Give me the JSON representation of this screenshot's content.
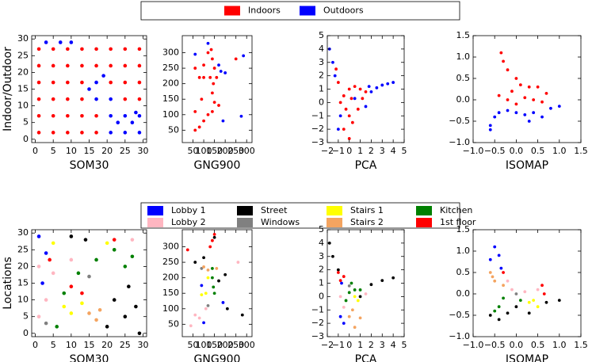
{
  "chart_data": [
    {
      "type": "scatter",
      "xlabel": "SOM30",
      "ylabel": "Indoor/Outdoor",
      "xlim": [
        -1,
        31
      ],
      "ylim": [
        -1,
        31
      ],
      "xticks": [
        0,
        5,
        10,
        15,
        20,
        25,
        30
      ],
      "yticks": [
        0,
        5,
        10,
        15,
        20,
        25,
        30
      ],
      "series": [
        {
          "name": "Indoors",
          "color": "#ff0000",
          "x": [
            1,
            5,
            9,
            13,
            17,
            1,
            5,
            9,
            13,
            17,
            1,
            5,
            9,
            13,
            25,
            29,
            1,
            5,
            9,
            13,
            21,
            25,
            29,
            1,
            5,
            9,
            13,
            17,
            21,
            25,
            29,
            1,
            5,
            9,
            13,
            17,
            21,
            25,
            29
          ],
          "values": [
            2,
            2,
            2,
            2,
            2,
            7,
            7,
            7,
            7,
            7,
            12,
            12,
            12,
            12,
            12,
            12,
            17,
            17,
            17,
            17,
            17,
            17,
            17,
            22,
            22,
            22,
            22,
            22,
            22,
            22,
            22,
            27,
            27,
            27,
            27,
            27,
            27,
            27,
            27
          ]
        },
        {
          "name": "Outdoors",
          "color": "#0000ff",
          "x": [
            21,
            25,
            29,
            23,
            27,
            21,
            25,
            29,
            17,
            21,
            15,
            17,
            19,
            3,
            7,
            10,
            28
          ],
          "values": [
            2,
            2,
            2,
            5,
            5,
            7,
            7,
            7,
            12,
            12,
            15,
            17,
            19,
            29,
            29,
            29,
            8
          ]
        }
      ]
    },
    {
      "type": "scatter",
      "xlabel": "GNG900",
      "xlim": [
        0,
        325
      ],
      "ylim": [
        10,
        355
      ],
      "xticks": [
        50,
        100,
        150,
        200,
        250,
        300
      ],
      "yticks": [
        50,
        100,
        150,
        200,
        250,
        300
      ],
      "series": [
        {
          "color": "#ff0000",
          "x": [
            60,
            80,
            100,
            120,
            140,
            150,
            140,
            145,
            130,
            100,
            80,
            160,
            150,
            140,
            135,
            120,
            100,
            60,
            90,
            170,
            250,
            60
          ],
          "values": [
            50,
            60,
            80,
            100,
            110,
            140,
            170,
            200,
            220,
            220,
            220,
            220,
            250,
            280,
            310,
            300,
            260,
            250,
            150,
            130,
            280,
            110
          ]
        },
        {
          "color": "#0000ff",
          "x": [
            120,
            180,
            200,
            170,
            275,
            190,
            60,
            285
          ],
          "values": [
            330,
            240,
            235,
            260,
            95,
            80,
            295,
            290
          ]
        }
      ]
    },
    {
      "type": "scatter",
      "xlabel": "PCA",
      "xlim": [
        -2,
        5
      ],
      "ylim": [
        -3,
        5
      ],
      "xticks": [
        {
          "value": -2,
          "label": "−2"
        },
        {
          "value": -1,
          "label": "−1"
        },
        0,
        1,
        2,
        3,
        4,
        5
      ],
      "yticks": [
        {
          "value": -3,
          "label": "−3"
        },
        {
          "value": -2,
          "label": "−2"
        },
        {
          "value": -1,
          "label": "−1"
        },
        0,
        1,
        2,
        3,
        4,
        5
      ],
      "series": [
        {
          "color": "#0000ff",
          "x": [
            -1.8,
            -1.5,
            -1.3,
            -1,
            -0.8,
            2,
            2.5,
            3,
            3.5,
            4,
            1.5,
            0.5,
            1.8
          ],
          "values": [
            4,
            3,
            2,
            -2,
            -1,
            0.8,
            1.1,
            1.3,
            1.4,
            1.5,
            -0.3,
            0.3,
            1.2
          ]
        },
        {
          "color": "#ff0000",
          "x": [
            -0.8,
            -0.5,
            0,
            0.5,
            1,
            1.5,
            0,
            -0.5,
            0.3,
            0.8,
            -1,
            -1.2,
            0.2,
            1.2,
            -0.3,
            0
          ],
          "values": [
            0,
            0.5,
            1,
            1.2,
            1,
            0.8,
            -1,
            -2,
            -1.5,
            -0.5,
            1.5,
            2.5,
            0.3,
            0.3,
            -0.5,
            -2.7
          ]
        }
      ]
    },
    {
      "type": "scatter",
      "xlabel": "ISOMAP",
      "xlim": [
        -1,
        1.5
      ],
      "ylim": [
        -1,
        1.5
      ],
      "xticks": [
        {
          "value": -1,
          "label": "−1.0"
        },
        {
          "value": -0.5,
          "label": "−0.5"
        },
        {
          "value": 0,
          "label": "0.0"
        },
        0.5,
        {
          "value": 1,
          "label": "1.0"
        },
        1.5
      ],
      "yticks": [
        {
          "value": -1,
          "label": "−1.0"
        },
        {
          "value": -0.5,
          "label": "−0.5"
        },
        {
          "value": 0,
          "label": "0.0"
        },
        0.5,
        {
          "value": 1,
          "label": "1.0"
        },
        1.5
      ],
      "series": [
        {
          "color": "#0000ff",
          "x": [
            -0.6,
            -0.5,
            -0.4,
            -0.2,
            0,
            0.2,
            0.4,
            0.6,
            0.8,
            1.0,
            -0.6,
            0.3
          ],
          "values": [
            -0.6,
            -0.4,
            -0.3,
            -0.25,
            -0.3,
            -0.35,
            -0.3,
            -0.4,
            -0.2,
            -0.15,
            -0.7,
            -0.5
          ]
        },
        {
          "color": "#ff0000",
          "x": [
            -0.35,
            -0.3,
            -0.2,
            0,
            0.1,
            0.3,
            0.5,
            0.7,
            -0.4,
            -0.2,
            0,
            0.2,
            0.4,
            0.6,
            -0.1
          ],
          "values": [
            1.1,
            0.9,
            0.7,
            0.5,
            0.35,
            0.3,
            0.3,
            0.15,
            0.1,
            0,
            -0.1,
            0.05,
            0,
            -0.05,
            0.2
          ]
        }
      ]
    },
    {
      "type": "scatter",
      "xlabel": "SOM30",
      "ylabel": "Locations",
      "xlim": [
        -1,
        31
      ],
      "ylim": [
        -1,
        31
      ],
      "xticks": [
        0,
        5,
        10,
        15,
        20,
        25,
        30
      ],
      "yticks": [
        0,
        5,
        10,
        15,
        20,
        25,
        30
      ],
      "series": [
        {
          "name": "Lobby 1",
          "color": "#0000ff",
          "x": [
            1,
            3,
            2
          ],
          "values": [
            29,
            24,
            15
          ]
        },
        {
          "name": "Street",
          "color": "#000000",
          "x": [
            20,
            25,
            28,
            22,
            26,
            10,
            14,
            29
          ],
          "values": [
            2,
            5,
            8,
            10,
            14,
            29,
            28,
            0
          ]
        },
        {
          "name": "Stairs 1",
          "color": "#ffff00",
          "x": [
            8,
            10,
            13,
            5,
            20
          ],
          "values": [
            8,
            6,
            9,
            27,
            27
          ]
        },
        {
          "name": "Kitchen",
          "color": "#008000",
          "x": [
            17,
            22,
            25,
            27,
            12,
            6,
            8
          ],
          "values": [
            22,
            25,
            20,
            23,
            18,
            2,
            12
          ]
        },
        {
          "name": "Lobby 2",
          "color": "#ffb6c1",
          "x": [
            1,
            3,
            1,
            5,
            10,
            27
          ],
          "values": [
            5,
            10,
            20,
            18,
            22,
            28
          ]
        },
        {
          "name": "Windows",
          "color": "#808080",
          "x": [
            15,
            3
          ],
          "values": [
            17,
            3
          ]
        },
        {
          "name": "Stairs 2",
          "color": "#f4a460",
          "x": [
            15,
            17,
            18
          ],
          "values": [
            6,
            4,
            7
          ]
        },
        {
          "name": "1st floor",
          "color": "#ff0000",
          "x": [
            10,
            13,
            22,
            4
          ],
          "values": [
            14,
            12,
            28,
            22
          ]
        }
      ]
    },
    {
      "type": "scatter",
      "xlabel": "GNG900",
      "xlim": [
        0,
        325
      ],
      "ylim": [
        10,
        355
      ],
      "xticks": [
        50,
        100,
        150,
        200,
        250,
        300
      ],
      "yticks": [
        50,
        100,
        150,
        200,
        250,
        300
      ],
      "series": [
        {
          "color": "#0000ff",
          "x": [
            190,
            100,
            90
          ],
          "values": [
            120,
            55,
            175
          ]
        },
        {
          "color": "#000000",
          "x": [
            150,
            170,
            200,
            210,
            280,
            60,
            100
          ],
          "values": [
            330,
            190,
            210,
            100,
            80,
            250,
            265
          ]
        },
        {
          "color": "#ffff00",
          "x": [
            90,
            110,
            120
          ],
          "values": [
            145,
            150,
            200
          ]
        },
        {
          "color": "#008000",
          "x": [
            140,
            145,
            150,
            140
          ],
          "values": [
            200,
            170,
            150,
            230
          ]
        },
        {
          "color": "#ffb6c1",
          "x": [
            40,
            80,
            110,
            260,
            60
          ],
          "values": [
            45,
            70,
            100,
            250,
            80
          ]
        },
        {
          "color": "#808080",
          "x": [
            90,
            120
          ],
          "values": [
            230,
            110
          ]
        },
        {
          "color": "#f4a460",
          "x": [
            100,
            120,
            160
          ],
          "values": [
            235,
            225,
            230
          ]
        },
        {
          "color": "#ff0000",
          "x": [
            140,
            130,
            25,
            150
          ],
          "values": [
            320,
            300,
            290,
            340
          ]
        }
      ]
    },
    {
      "type": "scatter",
      "xlabel": "PCA",
      "xlim": [
        -2,
        5
      ],
      "ylim": [
        -3,
        5
      ],
      "xticks": [
        {
          "value": -2,
          "label": "−2"
        },
        {
          "value": -1,
          "label": "−1"
        },
        0,
        1,
        2,
        3,
        4,
        5
      ],
      "yticks": [
        {
          "value": -3,
          "label": "−3"
        },
        {
          "value": -2,
          "label": "−2"
        },
        {
          "value": -1,
          "label": "−1"
        },
        0,
        1,
        2,
        3,
        4,
        5
      ],
      "series": [
        {
          "color": "#0000ff",
          "x": [
            -0.5,
            -0.8,
            -0.7
          ],
          "values": [
            -2,
            -1.5,
            1
          ]
        },
        {
          "color": "#000000",
          "x": [
            -1.8,
            -1.5,
            2,
            3,
            4,
            1,
            -1
          ],
          "values": [
            4,
            3,
            0.9,
            1.2,
            1.4,
            0,
            2
          ]
        },
        {
          "color": "#ffff00",
          "x": [
            0.5,
            0.8
          ],
          "values": [
            0,
            -0.3
          ]
        },
        {
          "color": "#008000",
          "x": [
            0,
            0.5,
            1,
            -0.3,
            0.2
          ],
          "values": [
            0.3,
            0.5,
            0.5,
            -0.3,
            1
          ]
        },
        {
          "color": "#ffb6c1",
          "x": [
            -0.8,
            -0.5,
            1.5
          ],
          "values": [
            0,
            -0.8,
            0.2
          ]
        },
        {
          "color": "#808080",
          "x": [
            0
          ],
          "values": [
            0.8
          ]
        },
        {
          "color": "#f4a460",
          "x": [
            0,
            0.5,
            1,
            0.3
          ],
          "values": [
            -1.5,
            -2.3,
            -1.6,
            -1
          ]
        },
        {
          "color": "#ff0000",
          "x": [
            -1,
            -0.8,
            -0.5
          ],
          "values": [
            1.8,
            1.2,
            1.5
          ]
        }
      ]
    },
    {
      "type": "scatter",
      "xlabel": "ISOMAP",
      "xlim": [
        -1,
        1.5
      ],
      "ylim": [
        -1,
        1.5
      ],
      "xticks": [
        {
          "value": -1,
          "label": "−1.0"
        },
        {
          "value": -0.5,
          "label": "−0.5"
        },
        {
          "value": 0,
          "label": "0.0"
        },
        0.5,
        {
          "value": 1,
          "label": "1.0"
        },
        1.5
      ],
      "yticks": [
        {
          "value": -1,
          "label": "−1.0"
        },
        {
          "value": -0.5,
          "label": "−0.5"
        },
        {
          "value": 0,
          "label": "0.0"
        },
        0.5,
        {
          "value": 1,
          "label": "1.0"
        },
        1.5
      ],
      "series": [
        {
          "color": "#0000ff",
          "x": [
            -0.5,
            -0.4,
            -0.35,
            -0.6
          ],
          "values": [
            1.1,
            0.9,
            0.6,
            0.8
          ]
        },
        {
          "color": "#000000",
          "x": [
            -0.6,
            -0.4,
            0,
            0.3,
            0.7,
            1.0,
            -0.2
          ],
          "values": [
            -0.5,
            -0.6,
            -0.3,
            -0.45,
            -0.2,
            -0.15,
            -0.45
          ]
        },
        {
          "color": "#ffff00",
          "x": [
            0.3,
            0.5,
            0.4
          ],
          "values": [
            -0.2,
            -0.3,
            -0.15
          ]
        },
        {
          "color": "#008000",
          "x": [
            -0.5,
            -0.3,
            0.1,
            -0.4
          ],
          "values": [
            -0.4,
            -0.1,
            -0.15,
            -0.3
          ]
        },
        {
          "color": "#ffb6c1",
          "x": [
            -0.1,
            0.2,
            0.5,
            -0.2
          ],
          "values": [
            0.1,
            0.05,
            0.1,
            0.3
          ]
        },
        {
          "color": "#808080",
          "x": [
            0
          ],
          "values": [
            0
          ]
        },
        {
          "color": "#f4a460",
          "x": [
            -0.55,
            -0.5,
            -0.3,
            -0.6
          ],
          "values": [
            0.4,
            0.3,
            0.2,
            0.5
          ]
        },
        {
          "color": "#ff0000",
          "x": [
            -0.3,
            0.6,
            0.65
          ],
          "values": [
            0.5,
            0.2,
            0
          ]
        }
      ]
    }
  ]
}
